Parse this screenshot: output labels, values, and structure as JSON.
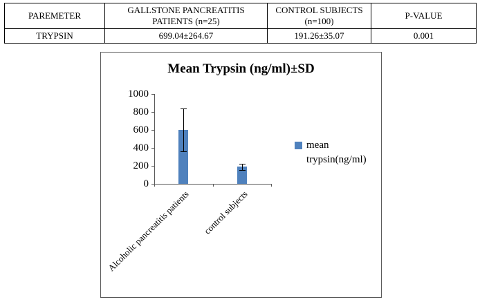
{
  "table": {
    "headers": [
      "PAREMETER",
      "GALLSTONE PANCREATITIS PATIENTS (n=25)",
      "CONTROL SUBJECTS (n=100)",
      "P-VALUE"
    ],
    "rows": [
      [
        "TRYPSIN",
        "699.04±264.67",
        "191.26±35.07",
        "0.001"
      ]
    ]
  },
  "chart_data": {
    "type": "bar",
    "title": "Mean Trypsin (ng/ml)±SD",
    "categories": [
      "Alcoholic pancreatitis patients",
      "control subjects"
    ],
    "series": [
      {
        "name": "mean trypsin(ng/ml)",
        "values": [
          600,
          190
        ],
        "errors": [
          240,
          35
        ]
      }
    ],
    "ylim": [
      0,
      1000
    ],
    "ytick_step": 200,
    "grid": false,
    "legend_position": "right",
    "bar_color": "#4F81BD",
    "xlabel": "",
    "ylabel": ""
  }
}
